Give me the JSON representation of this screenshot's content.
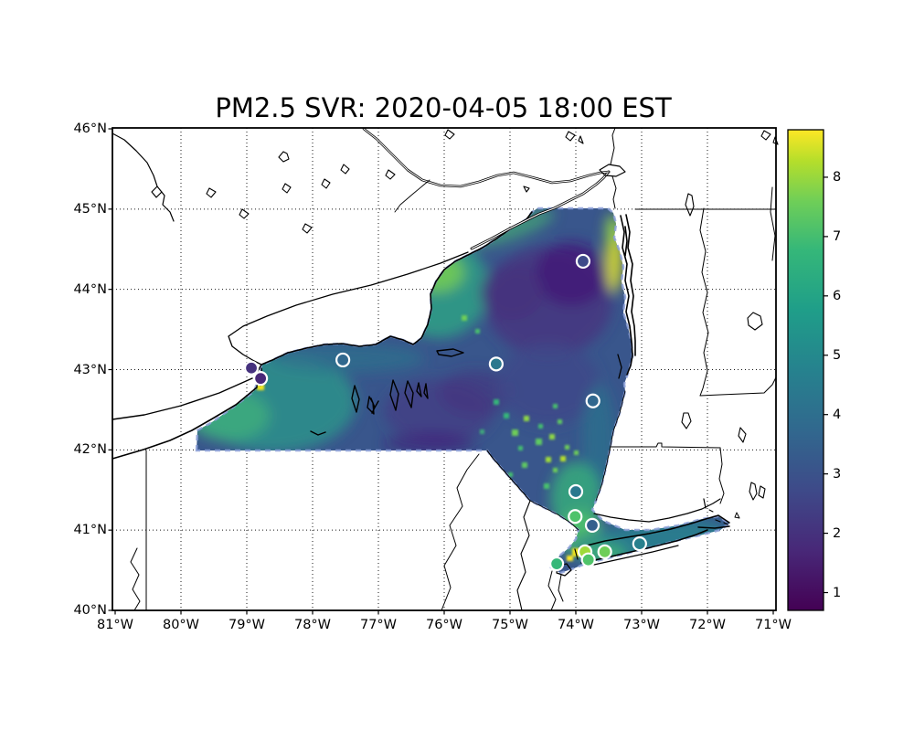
{
  "figure": {
    "title": "PM2.5 SVR: 2020-04-05 18:00 EST",
    "background": "#ffffff"
  },
  "chart_data": {
    "type": "heatmap",
    "title": "PM2.5 SVR: 2020-04-05 18:00 EST",
    "variable": "PM2.5",
    "model": "SVR",
    "timestamp": "2020-04-05 18:00 EST",
    "region": "New York State and surroundings",
    "grid": true,
    "x_axis": {
      "label": "",
      "ticks": [
        {
          "label": "81°W",
          "lon": 81
        },
        {
          "label": "80°W",
          "lon": 80
        },
        {
          "label": "79°W",
          "lon": 79
        },
        {
          "label": "78°W",
          "lon": 78
        },
        {
          "label": "77°W",
          "lon": 77
        },
        {
          "label": "76°W",
          "lon": 76
        },
        {
          "label": "75°W",
          "lon": 75
        },
        {
          "label": "74°W",
          "lon": 74
        },
        {
          "label": "73°W",
          "lon": 73
        },
        {
          "label": "72°W",
          "lon": 72
        },
        {
          "label": "71°W",
          "lon": 71
        }
      ]
    },
    "y_axis": {
      "label": "",
      "ticks": [
        {
          "label": "46°N",
          "lat": 46
        },
        {
          "label": "45°N",
          "lat": 45
        },
        {
          "label": "44°N",
          "lat": 44
        },
        {
          "label": "43°N",
          "lat": 43
        },
        {
          "label": "42°N",
          "lat": 42
        },
        {
          "label": "41°N",
          "lat": 41
        },
        {
          "label": "40°N",
          "lat": 40
        }
      ]
    },
    "colorbar": {
      "colormap": "viridis",
      "vmin": 0.7,
      "vmax": 8.8,
      "ticks": [
        {
          "label": "1",
          "value": 1
        },
        {
          "label": "2",
          "value": 2
        },
        {
          "label": "3",
          "value": 3
        },
        {
          "label": "4",
          "value": 4
        },
        {
          "label": "5",
          "value": 5
        },
        {
          "label": "6",
          "value": 6
        },
        {
          "label": "7",
          "value": 7
        },
        {
          "label": "8",
          "value": 8
        }
      ]
    },
    "stations": [
      {
        "lon": 78.93,
        "lat": 43.02,
        "fill": "#46327e"
      },
      {
        "lon": 78.79,
        "lat": 42.89,
        "fill": "#482878"
      },
      {
        "lon": 77.54,
        "lat": 43.12,
        "fill": "#31688e"
      },
      {
        "lon": 75.21,
        "lat": 43.07,
        "fill": "#2a788e"
      },
      {
        "lon": 73.89,
        "lat": 44.35,
        "fill": "#3e4a89"
      },
      {
        "lon": 73.74,
        "lat": 42.61,
        "fill": "#31688e"
      },
      {
        "lon": 74.0,
        "lat": 41.48,
        "fill": "#2a788e"
      },
      {
        "lon": 74.01,
        "lat": 41.17,
        "fill": "#4ec36b"
      },
      {
        "lon": 73.75,
        "lat": 41.06,
        "fill": "#355f8d"
      },
      {
        "lon": 73.86,
        "lat": 40.73,
        "fill": "#9fda3a"
      },
      {
        "lon": 73.56,
        "lat": 40.73,
        "fill": "#6ece58"
      },
      {
        "lon": 73.03,
        "lat": 40.83,
        "fill": "#27808e"
      },
      {
        "lon": 73.81,
        "lat": 40.63,
        "fill": "#50c46a"
      },
      {
        "lon": 74.29,
        "lat": 40.58,
        "fill": "#35b779"
      }
    ],
    "field_summary": "PM2.5 surface over New York: low values (1-3, dark purple-blue) across the Adirondacks and central interior; moderate (4-6, teal-green) over western NY, the Tug Hill / eastern Lake Ontario shore, lower Hudson Valley and Long Island; high values (7-9, yellow) in small patches at Buffalo, along the Lake Champlain shore and around New York City."
  }
}
